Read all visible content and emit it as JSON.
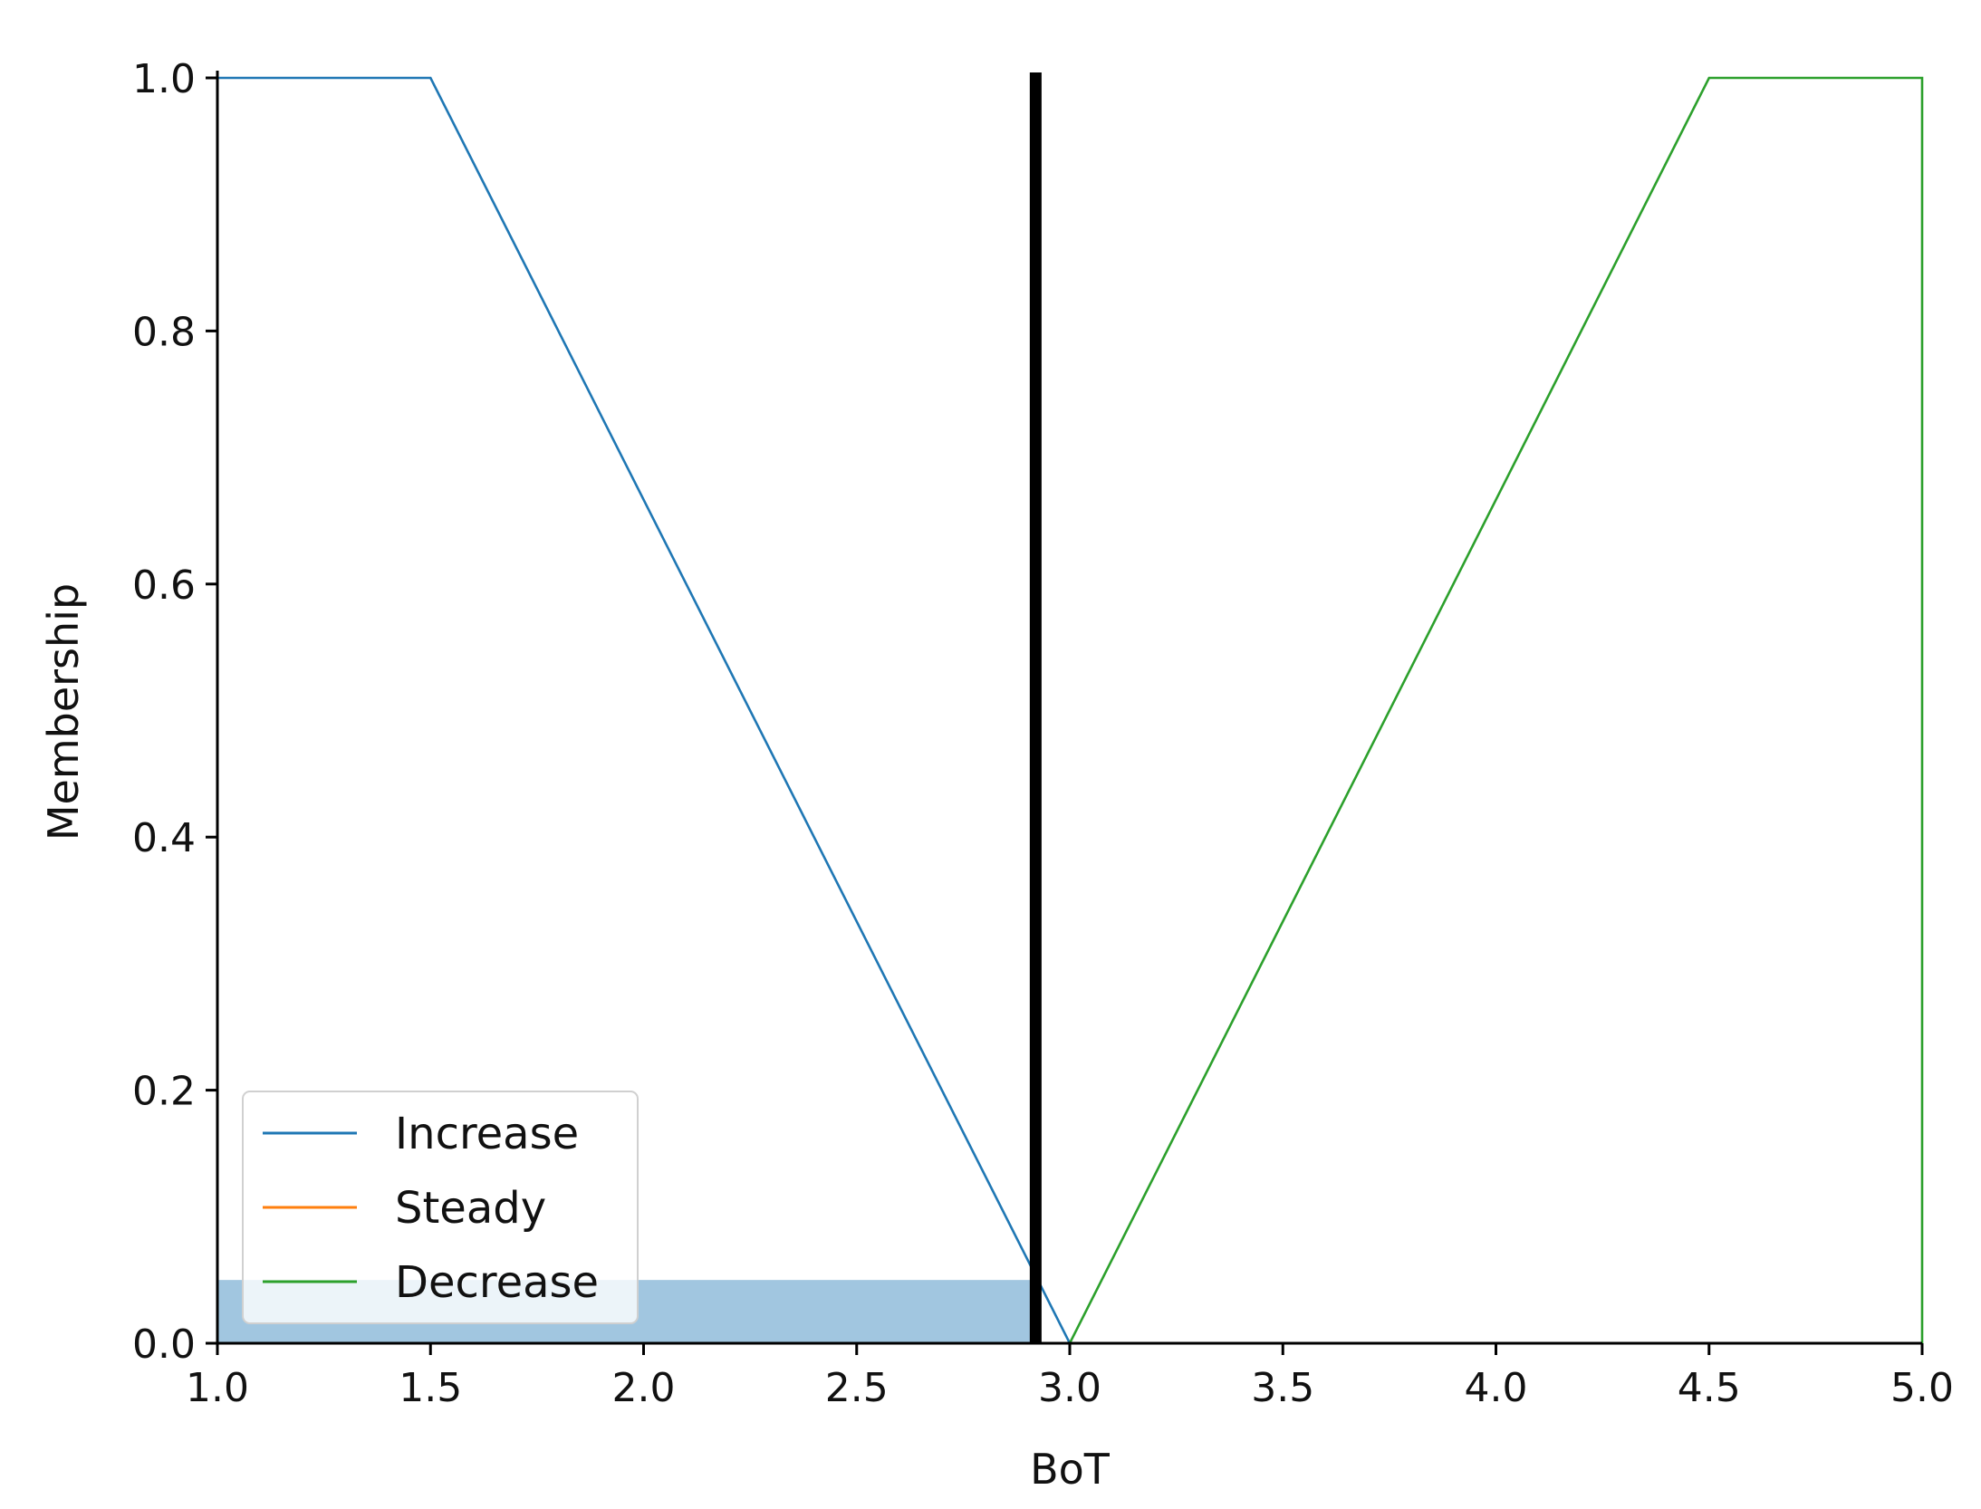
{
  "chart_data": {
    "type": "line",
    "title": "",
    "xlabel": "BoT",
    "ylabel": "Membership",
    "xlim": [
      1.0,
      5.0
    ],
    "ylim": [
      0.0,
      1.0
    ],
    "x_ticks": [
      "1.0",
      "1.5",
      "2.0",
      "2.5",
      "3.0",
      "3.5",
      "4.0",
      "4.5",
      "5.0"
    ],
    "y_ticks": [
      "0.0",
      "0.2",
      "0.4",
      "0.6",
      "0.8",
      "1.0"
    ],
    "grid": false,
    "legend_position": "lower-left",
    "series": [
      {
        "name": "Increase",
        "color": "#1f77b4",
        "x": [
          1.0,
          1.5,
          3.0,
          5.0
        ],
        "y": [
          1.0,
          1.0,
          0.0,
          0.0
        ]
      },
      {
        "name": "Steady",
        "color": "#ff7f0e",
        "x": [],
        "y": []
      },
      {
        "name": "Decrease",
        "color": "#2ca02c",
        "x": [
          1.0,
          3.0,
          4.5,
          5.0,
          5.0
        ],
        "y": [
          0.0,
          0.0,
          1.0,
          1.0,
          0.0
        ]
      }
    ],
    "activation_fill": {
      "color": "#1f77b4",
      "x": [
        1.0,
        2.92
      ],
      "level": 0.05
    },
    "crisp_output": {
      "x": 2.92,
      "color": "#000000"
    }
  }
}
